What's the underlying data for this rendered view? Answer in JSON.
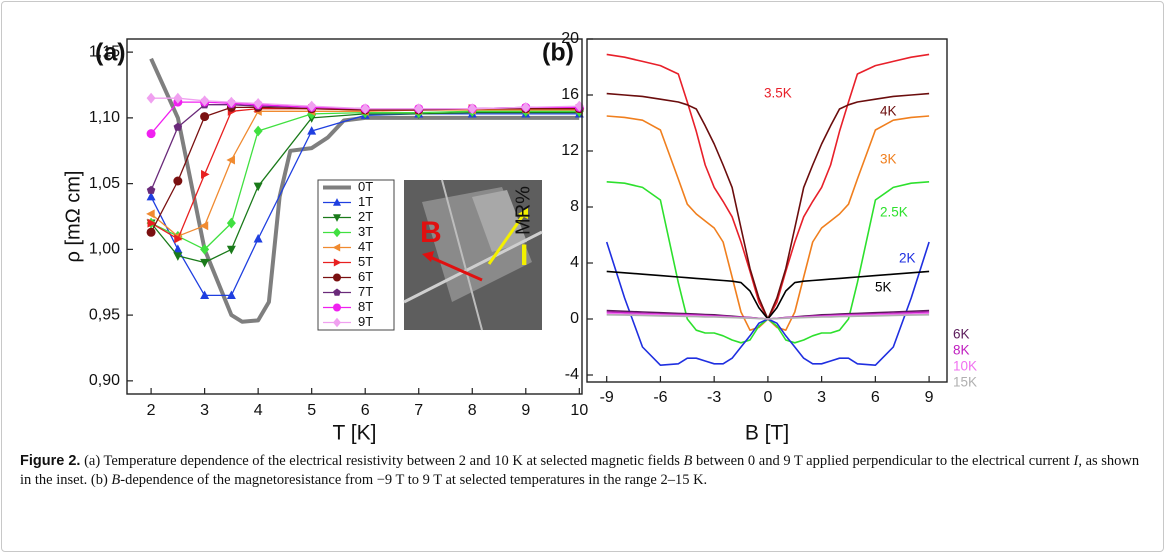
{
  "chart_data": [
    {
      "type": "line",
      "panel_label": "(a)",
      "x_label": "T [K]",
      "y_label": "ρ [mΩ cm]",
      "xlim": [
        1.55,
        10.05
      ],
      "ylim": [
        0.89,
        1.16
      ],
      "xticks": [
        2,
        3,
        4,
        5,
        6,
        7,
        8,
        9,
        10
      ],
      "yticks": [
        {
          "value": 0.9,
          "label": "0,90"
        },
        {
          "value": 0.95,
          "label": "0,95"
        },
        {
          "value": 1.0,
          "label": "1,00"
        },
        {
          "value": 1.05,
          "label": "1,05"
        },
        {
          "value": 1.1,
          "label": "1,10"
        },
        {
          "value": 1.15,
          "label": "1,15"
        }
      ],
      "x": [
        2,
        2.5,
        3,
        3.5,
        4,
        5,
        6,
        7,
        8,
        9,
        10
      ],
      "annotations": [
        "B",
        "I"
      ],
      "series": [
        {
          "name": "0T",
          "color": "#7f7f7f",
          "marker": "none",
          "x": [
            2,
            2.5,
            3,
            3.5,
            3.7,
            4,
            4.2,
            4.4,
            4.6,
            5,
            5.3,
            5.6,
            6,
            7,
            8,
            9,
            10
          ],
          "values": [
            1.145,
            1.1,
            1.0,
            0.95,
            0.945,
            0.946,
            0.96,
            1.04,
            1.075,
            1.077,
            1.085,
            1.098,
            1.1,
            1.1,
            1.1,
            1.1,
            1.1
          ]
        },
        {
          "name": "1T",
          "color": "#1f3fe0",
          "marker": "triangle-up",
          "values": [
            1.04,
            1.0,
            0.965,
            0.965,
            1.008,
            1.09,
            1.102,
            1.103,
            1.103,
            1.103,
            1.103
          ]
        },
        {
          "name": "2T",
          "color": "#1a7a1a",
          "marker": "triangle-down",
          "values": [
            1.02,
            0.995,
            0.99,
            1.0,
            1.048,
            1.1,
            1.103,
            1.103,
            1.104,
            1.104,
            1.104
          ]
        },
        {
          "name": "3T",
          "color": "#40e040",
          "marker": "diamond",
          "values": [
            1.02,
            1.01,
            1.0,
            1.02,
            1.09,
            1.103,
            1.104,
            1.104,
            1.105,
            1.105,
            1.105
          ]
        },
        {
          "name": "4T",
          "color": "#f08a30",
          "marker": "triangle-left",
          "values": [
            1.027,
            1.01,
            1.018,
            1.068,
            1.105,
            1.105,
            1.105,
            1.106,
            1.106,
            1.106,
            1.106
          ]
        },
        {
          "name": "5T",
          "color": "#e82020",
          "marker": "triangle-right",
          "values": [
            1.02,
            1.008,
            1.057,
            1.105,
            1.107,
            1.107,
            1.106,
            1.106,
            1.107,
            1.107,
            1.107
          ]
        },
        {
          "name": "6T",
          "color": "#7a1010",
          "marker": "circle",
          "values": [
            1.013,
            1.052,
            1.101,
            1.108,
            1.108,
            1.107,
            1.106,
            1.106,
            1.107,
            1.107,
            1.107
          ]
        },
        {
          "name": "7T",
          "color": "#6a2a7a",
          "marker": "pentagon",
          "values": [
            1.045,
            1.093,
            1.11,
            1.11,
            1.109,
            1.108,
            1.107,
            1.107,
            1.107,
            1.108,
            1.108
          ]
        },
        {
          "name": "8T",
          "color": "#f020f0",
          "marker": "circle",
          "values": [
            1.088,
            1.112,
            1.112,
            1.111,
            1.11,
            1.108,
            1.107,
            1.107,
            1.107,
            1.108,
            1.108
          ]
        },
        {
          "name": "9T",
          "color": "#f0a0f0",
          "marker": "diamond",
          "values": [
            1.115,
            1.115,
            1.113,
            1.112,
            1.111,
            1.109,
            1.107,
            1.107,
            1.107,
            1.108,
            1.109
          ]
        }
      ]
    },
    {
      "type": "line",
      "panel_label": "(b)",
      "x_label": "B [T]",
      "y_label": "MR%",
      "xlim": [
        -10.1,
        10.0
      ],
      "ylim": [
        -4.5,
        20
      ],
      "xticks": [
        -9,
        -6,
        -3,
        0,
        3,
        6,
        9
      ],
      "yticks": [
        -4,
        0,
        4,
        8,
        12,
        16,
        20
      ],
      "x": [
        -9,
        -8,
        -7,
        -6,
        -5,
        -4.5,
        -4,
        -3.5,
        -3,
        -2.5,
        -2,
        -1.5,
        -1,
        -0.5,
        0,
        0.5,
        1,
        1.5,
        2,
        2.5,
        3,
        3.5,
        4,
        4.5,
        5,
        6,
        7,
        8,
        9
      ],
      "series": [
        {
          "name": "3.5K",
          "color": "#e8202a",
          "values": [
            18.9,
            18.7,
            18.4,
            18.1,
            17.5,
            15.5,
            13.4,
            11,
            9.4,
            8.4,
            7.3,
            5.5,
            3.4,
            1.2,
            0,
            1.2,
            3.4,
            5.5,
            7.3,
            8.4,
            9.4,
            11,
            13.4,
            15.5,
            17.5,
            18.1,
            18.4,
            18.7,
            18.9
          ]
        },
        {
          "name": "4K",
          "color": "#6b0d0d",
          "values": [
            16.1,
            16,
            15.9,
            15.7,
            15.5,
            15.3,
            15,
            13.8,
            12.5,
            11,
            9.4,
            6.5,
            3.6,
            1.5,
            0,
            1.5,
            3.6,
            6.5,
            9.4,
            11,
            12.5,
            13.8,
            15,
            15.3,
            15.5,
            15.7,
            15.9,
            16,
            16.1
          ]
        },
        {
          "name": "3K",
          "color": "#f07f1e",
          "values": [
            14.5,
            14.4,
            14.2,
            13.5,
            10,
            8.2,
            7.5,
            7,
            6.5,
            5.5,
            3,
            0.5,
            -0.8,
            -0.6,
            0,
            -0.6,
            -0.8,
            0.5,
            3,
            5.5,
            6.5,
            7,
            7.5,
            8.2,
            10,
            13.5,
            14.2,
            14.4,
            14.5
          ]
        },
        {
          "name": "2.5K",
          "color": "#2de02d",
          "values": [
            9.8,
            9.7,
            9.4,
            8.5,
            2.6,
            0,
            -0.8,
            -1,
            -1,
            -1.2,
            -1.5,
            -1.7,
            -1.5,
            -0.5,
            0,
            -0.5,
            -1.5,
            -1.7,
            -1.5,
            -1.2,
            -1,
            -1,
            -0.8,
            0,
            2.6,
            8.5,
            9.4,
            9.7,
            9.8
          ]
        },
        {
          "name": "2K",
          "color": "#1f2fe0",
          "values": [
            5.5,
            1.5,
            -2,
            -3.3,
            -3.2,
            -2.8,
            -2.8,
            -3,
            -3.2,
            -3.2,
            -2.8,
            -2,
            -1.2,
            -0.3,
            0,
            -0.3,
            -1.2,
            -2,
            -2.8,
            -3.2,
            -3.2,
            -3,
            -2.8,
            -2.8,
            -3.2,
            -3.3,
            -2,
            1.5,
            5.5
          ]
        },
        {
          "name": "5K",
          "color": "#000000",
          "values": [
            3.4,
            3.3,
            3.2,
            3.1,
            3,
            2.95,
            2.9,
            2.85,
            2.8,
            2.75,
            2.7,
            2.6,
            2,
            0.8,
            0,
            0.8,
            2,
            2.6,
            2.7,
            2.75,
            2.8,
            2.85,
            2.9,
            2.95,
            3,
            3.1,
            3.2,
            3.3,
            3.4
          ]
        },
        {
          "name": "6K",
          "color": "#5a1a5a",
          "values": [
            0.6,
            0.55,
            0.5,
            0.45,
            0.4,
            0.38,
            0.35,
            0.32,
            0.3,
            0.25,
            0.2,
            0.15,
            0.1,
            0.05,
            0,
            0.05,
            0.1,
            0.15,
            0.2,
            0.25,
            0.3,
            0.32,
            0.35,
            0.38,
            0.4,
            0.45,
            0.5,
            0.55,
            0.6
          ]
        },
        {
          "name": "8K",
          "color": "#c020c0",
          "values": [
            0.5,
            0.45,
            0.4,
            0.36,
            0.32,
            0.3,
            0.28,
            0.25,
            0.22,
            0.2,
            0.15,
            0.12,
            0.1,
            0.05,
            0,
            0.05,
            0.1,
            0.12,
            0.15,
            0.2,
            0.22,
            0.25,
            0.28,
            0.3,
            0.32,
            0.36,
            0.4,
            0.45,
            0.5
          ]
        },
        {
          "name": "10K",
          "color": "#f070f0",
          "values": [
            0.4,
            0.36,
            0.33,
            0.3,
            0.26,
            0.24,
            0.22,
            0.2,
            0.18,
            0.15,
            0.12,
            0.1,
            0.08,
            0.04,
            0,
            0.04,
            0.08,
            0.1,
            0.12,
            0.15,
            0.18,
            0.2,
            0.22,
            0.24,
            0.26,
            0.3,
            0.33,
            0.36,
            0.4
          ]
        },
        {
          "name": "15K",
          "color": "#b0b0b0",
          "values": [
            0.3,
            0.28,
            0.25,
            0.22,
            0.2,
            0.18,
            0.17,
            0.15,
            0.14,
            0.12,
            0.1,
            0.08,
            0.06,
            0.03,
            0,
            0.03,
            0.06,
            0.08,
            0.1,
            0.12,
            0.14,
            0.15,
            0.17,
            0.18,
            0.2,
            0.22,
            0.25,
            0.28,
            0.3
          ]
        }
      ]
    }
  ],
  "caption": {
    "label": "Figure 2.",
    "parts": [
      {
        "text": " (a) Temperature dependence of the electrical resistivity between 2 and 10 K at selected magnetic fields ",
        "italic": false
      },
      {
        "text": "B",
        "italic": true
      },
      {
        "text": " between 0 and 9 T applied perpendicular to the electrical current ",
        "italic": false
      },
      {
        "text": "I",
        "italic": true
      },
      {
        "text": ", as shown in the inset. (b) ",
        "italic": false
      },
      {
        "text": "B",
        "italic": true
      },
      {
        "text": "-dependence of the magnetoresistance from −9 T to 9 T at selected temperatures in the range 2–15 K.",
        "italic": false
      }
    ]
  }
}
